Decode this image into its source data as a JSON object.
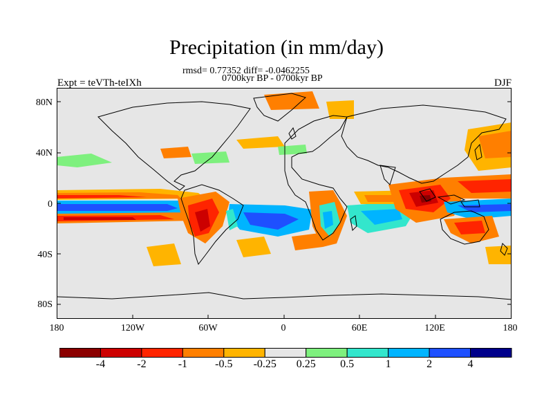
{
  "title": "Precipitation (in mm/day)",
  "stats": "rmsd= 0.77352 diff= -0.0462255",
  "periods": "0700kyr BP - 0700kyr BP",
  "expt": "Expt = teVTh-teIXh",
  "season": "DJF",
  "y_ticks": [
    "80N",
    "40N",
    "0",
    "40S",
    "80S"
  ],
  "x_ticks": [
    "180",
    "120W",
    "60W",
    "0",
    "60E",
    "120E",
    "180"
  ],
  "colorbar": {
    "labels": [
      "-4",
      "-2",
      "-1",
      "-0.5",
      "-0.25",
      "0.25",
      "0.5",
      "1",
      "2",
      "4"
    ],
    "colors": [
      "#8b0000",
      "#cc0000",
      "#ff2400",
      "#ff7f00",
      "#ffb400",
      "#e6e6e6",
      "#7ef07e",
      "#33e6cc",
      "#00b4ff",
      "#1e50ff",
      "#00008b"
    ]
  },
  "colors": {
    "land_ocean_base": "#e6e6e6",
    "coast": "#000000"
  }
}
